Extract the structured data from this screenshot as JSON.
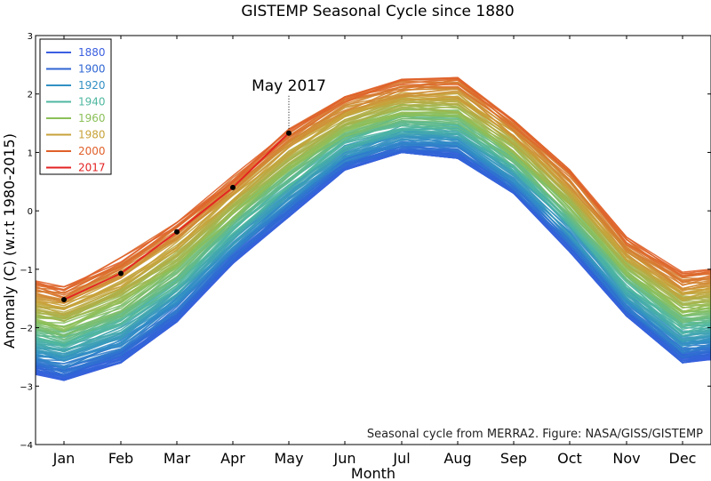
{
  "chart_data": {
    "type": "line",
    "title": "GISTEMP Seasonal Cycle since 1880",
    "xlabel": "Month",
    "ylabel": "Anomaly (C) (w.r.t 1980-2015)",
    "categories": [
      "Jan",
      "Feb",
      "Mar",
      "Apr",
      "May",
      "Jun",
      "Jul",
      "Aug",
      "Sep",
      "Oct",
      "Nov",
      "Dec"
    ],
    "yticks": [
      "3",
      "2",
      "1",
      "0",
      "−1",
      "−2",
      "−3",
      "−4"
    ],
    "ylim": [
      -4,
      3
    ],
    "grid": false,
    "legend_position": "top-left",
    "legend": [
      {
        "label": "1880",
        "color": "#3b5fe0"
      },
      {
        "label": "1900",
        "color": "#2f66d4"
      },
      {
        "label": "1920",
        "color": "#3290c4"
      },
      {
        "label": "1940",
        "color": "#4fb7a0"
      },
      {
        "label": "1960",
        "color": "#8cc05a"
      },
      {
        "label": "1980",
        "color": "#c8a23a"
      },
      {
        "label": "2000",
        "color": "#e0602a"
      },
      {
        "label": "2017",
        "color": "#e42222"
      }
    ],
    "lower_envelope": [
      -2.9,
      -2.6,
      -1.9,
      -0.9,
      -0.1,
      0.7,
      1.0,
      0.9,
      0.3,
      -0.7,
      -1.8,
      -2.6
    ],
    "upper_envelope": [
      -1.3,
      -0.8,
      -0.2,
      0.6,
      1.4,
      1.95,
      2.25,
      2.28,
      1.55,
      0.7,
      -0.45,
      -1.05
    ],
    "series_2017": {
      "name": "2017",
      "values": [
        -1.52,
        -1.07,
        -0.36,
        0.4,
        1.33
      ],
      "color": "#e42222"
    },
    "annotation": {
      "text": "May 2017",
      "x": "May",
      "y": 1.33
    },
    "footnote": "Seasonal cycle from MERRA2. Figure: NASA/GISS/GISTEMP"
  }
}
